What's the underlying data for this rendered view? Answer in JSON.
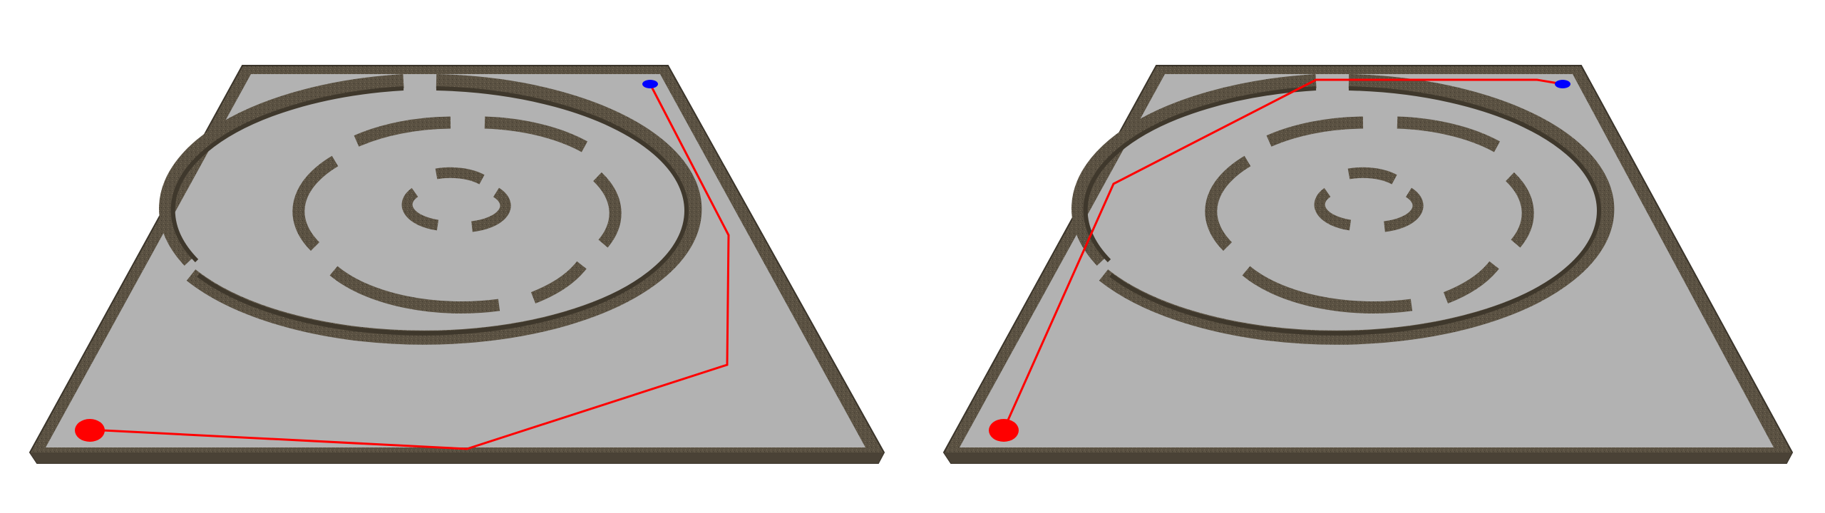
{
  "scene": {
    "panels": [
      {
        "id": "left",
        "path_color": "#ff0000",
        "start_color": "#ff0000",
        "goal_color": "#0000ff",
        "floor_color": "#b2b2b2",
        "wall_color": "#5e5444"
      },
      {
        "id": "right",
        "path_color": "#ff0000",
        "start_color": "#ff0000",
        "goal_color": "#0000ff",
        "floor_color": "#b2b2b2",
        "wall_color": "#5e5444"
      }
    ]
  }
}
